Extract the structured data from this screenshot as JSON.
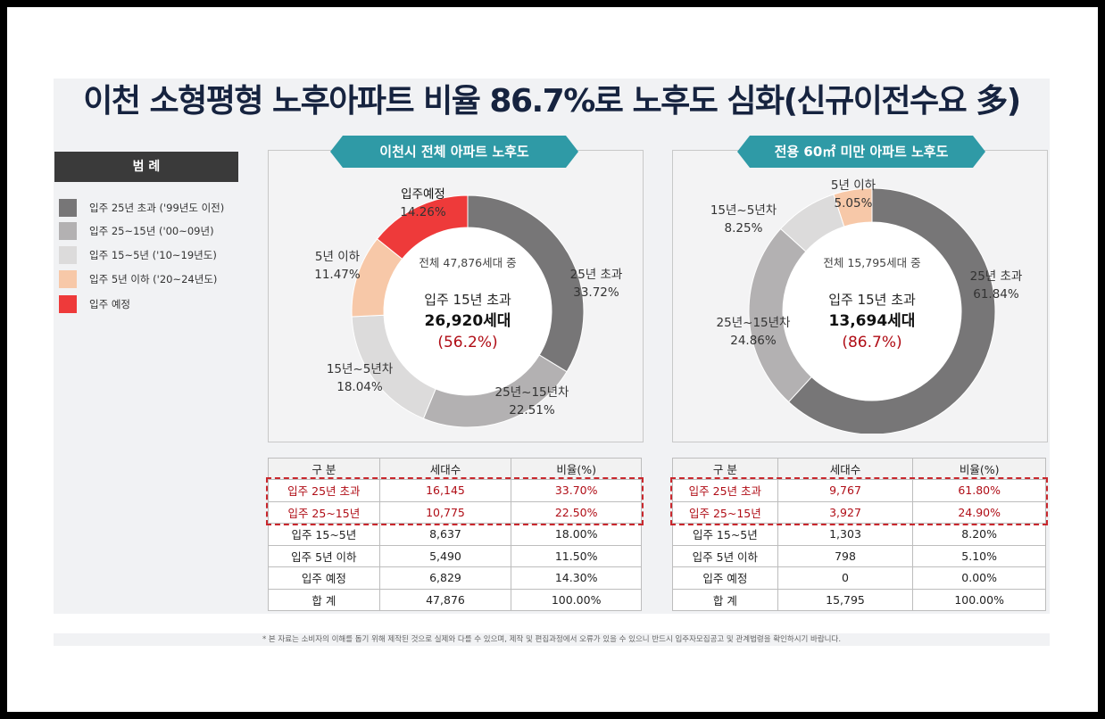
{
  "title": "이천 소형평형 노후아파트 비율 86.7%로 노후도 심화(신규이전수요 多)",
  "legend": {
    "header": "범 례",
    "items": [
      {
        "label": "입주 25년 초과 ('99년도 이전)",
        "color": "#777677"
      },
      {
        "label": "입주 25~15년 ('00~09년)",
        "color": "#b3b1b2"
      },
      {
        "label": "입주 15~5년 ('10~19년도)",
        "color": "#dcdbdb"
      },
      {
        "label": "입주 5년 이하 ('20~24년도)",
        "color": "#f7c8a8"
      },
      {
        "label": "입주 예정",
        "color": "#ee3a3a"
      }
    ]
  },
  "chart_data": [
    {
      "type": "pie",
      "title": "이천시 전체 아파트 노후도",
      "center": {
        "line1": "전체 47,876세대 중",
        "line2": "입주 15년 초과",
        "line3": "26,920세대",
        "line4": "(56.2%)"
      },
      "slices": [
        {
          "name": "25년 초과",
          "label_value": "33.72%",
          "value": 33.72,
          "color": "#777677"
        },
        {
          "name": "25년~15년차",
          "label_value": "22.51%",
          "value": 22.51,
          "color": "#b3b1b2"
        },
        {
          "name": "15년~5년차",
          "label_value": "18.04%",
          "value": 18.04,
          "color": "#dcdbdb"
        },
        {
          "name": "5년 이하",
          "label_value": "11.47%",
          "value": 11.47,
          "color": "#f7c8a8"
        },
        {
          "name": "입주예정",
          "label_value": "14.26%",
          "value": 14.26,
          "color": "#ee3a3a"
        }
      ]
    },
    {
      "type": "pie",
      "title": "전용 60㎡ 미만 아파트 노후도",
      "center": {
        "line1": "전체 15,795세대 중",
        "line2": "입주 15년 초과",
        "line3": "13,694세대",
        "line4": "(86.7%)"
      },
      "slices": [
        {
          "name": "25년 초과",
          "label_value": "61.84%",
          "value": 61.84,
          "color": "#777677"
        },
        {
          "name": "25년~15년차",
          "label_value": "24.86%",
          "value": 24.86,
          "color": "#b3b1b2"
        },
        {
          "name": "15년~5년차",
          "label_value": "8.25%",
          "value": 8.25,
          "color": "#dcdbdb"
        },
        {
          "name": "5년 이하",
          "label_value": "5.05%",
          "value": 5.05,
          "color": "#f7c8a8"
        }
      ]
    }
  ],
  "tables": [
    {
      "headers": [
        "구  분",
        "세대수",
        "비율(%)"
      ],
      "rows": [
        [
          "입주 25년 초과",
          "16,145",
          "33.70%"
        ],
        [
          "입주 25~15년",
          "10,775",
          "22.50%"
        ],
        [
          "입주 15~5년",
          "8,637",
          "18.00%"
        ],
        [
          "입주 5년 이하",
          "5,490",
          "11.50%"
        ],
        [
          "입주 예정",
          "6,829",
          "14.30%"
        ],
        [
          "합 계",
          "47,876",
          "100.00%"
        ]
      ]
    },
    {
      "headers": [
        "구  분",
        "세대수",
        "비율(%)"
      ],
      "rows": [
        [
          "입주 25년 초과",
          "9,767",
          "61.80%"
        ],
        [
          "입주 25~15년",
          "3,927",
          "24.90%"
        ],
        [
          "입주 15~5년",
          "1,303",
          "8.20%"
        ],
        [
          "입주 5년 이하",
          "798",
          "5.10%"
        ],
        [
          "입주 예정",
          "0",
          "0.00%"
        ],
        [
          "합 계",
          "15,795",
          "100.00%"
        ]
      ]
    }
  ],
  "footnote": "* 본 자료는 소비자의 이해를 돕기 위해 제작된 것으로 실제와 다를 수 있으며, 제작 및 편집과정에서 오류가 있을 수 있으니 반드시 입주자모집공고 및 관계법령을 확인하시기 바랍니다.",
  "colors": {
    "accent": "#2f9aa6",
    "highlight": "#b00d16",
    "title": "#16233f"
  }
}
